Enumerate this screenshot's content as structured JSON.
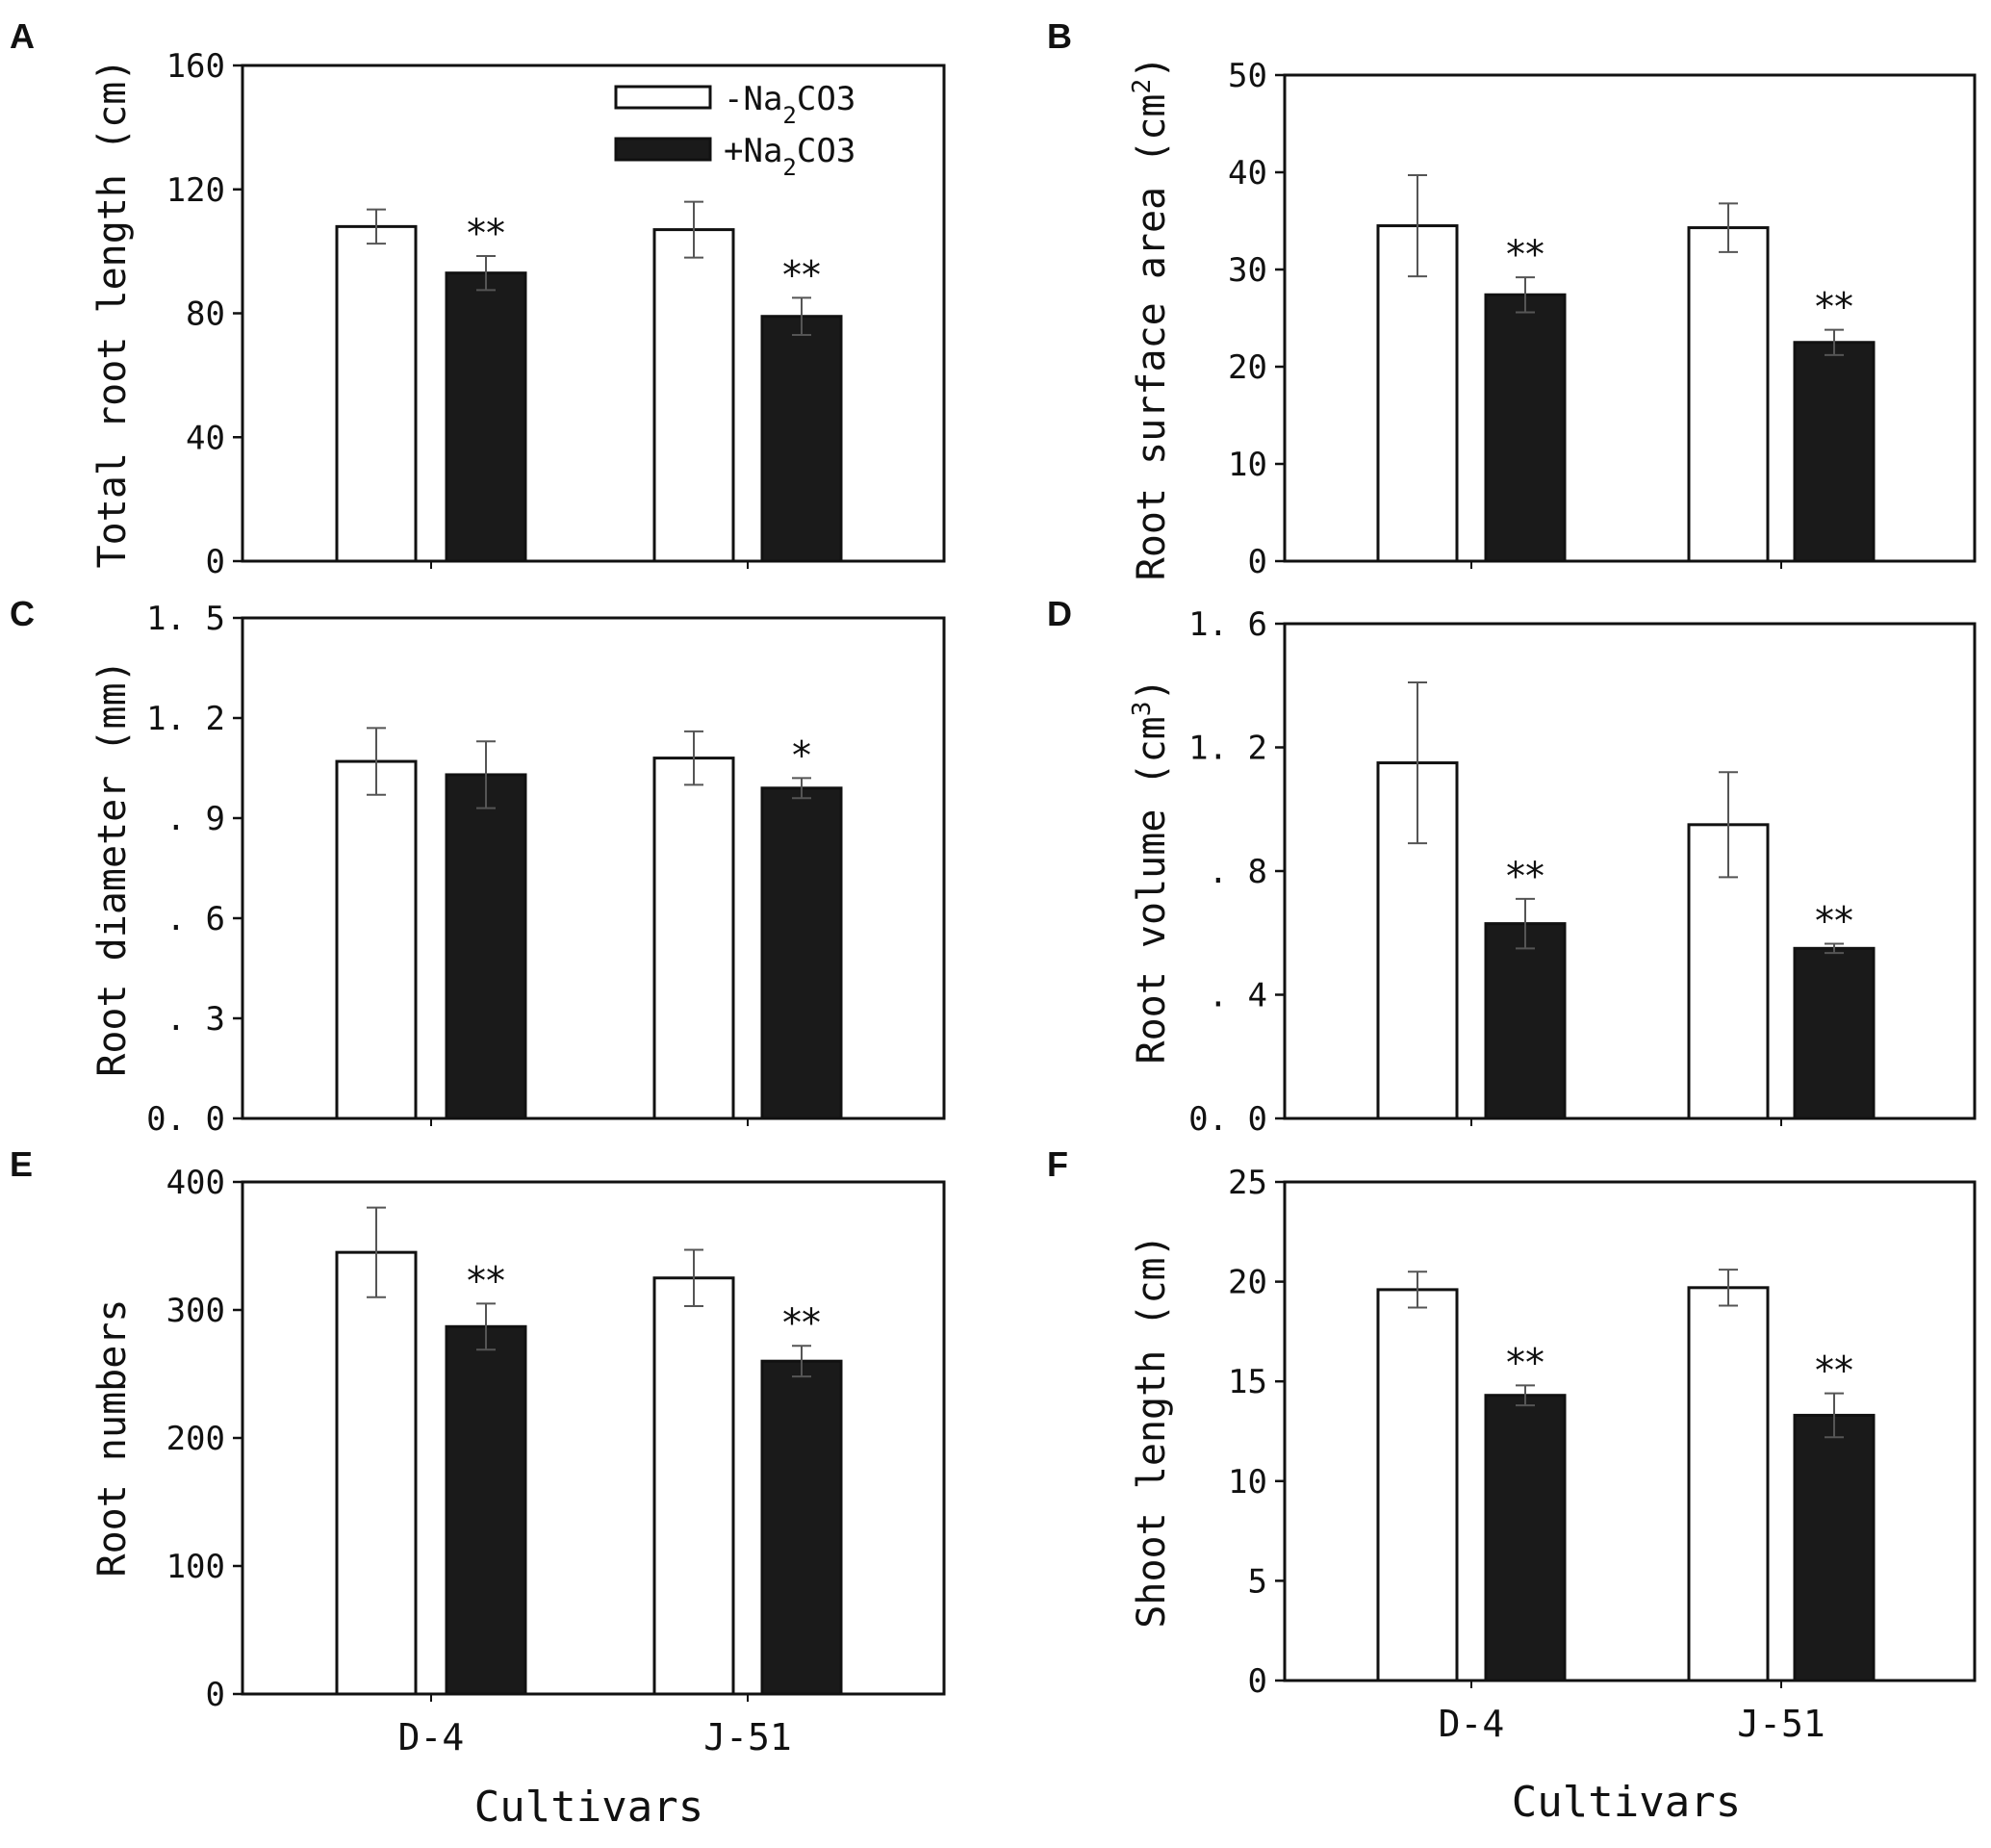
{
  "figure": {
    "legend": {
      "control": {
        "prefix": "-Na",
        "sub": "2",
        "suffix": "CO3"
      },
      "treatment": {
        "prefix": "+Na",
        "sub": "2",
        "suffix": "CO3"
      }
    },
    "xlabel": "Cultivars",
    "colors": {
      "control_fill": "#ffffff",
      "treatment_fill": "#1a1a1a",
      "stroke": "#111111",
      "errorbar": "#555555"
    }
  },
  "chart_data": [
    {
      "panel": "A",
      "type": "bar",
      "ylabel": "Total root length (cm)",
      "ylim": [
        0,
        160
      ],
      "yticks": [
        0,
        40,
        80,
        120,
        160
      ],
      "ytick_labels": [
        "0",
        "40",
        "80",
        "120",
        "160"
      ],
      "categories": [
        "D-4",
        "J-51"
      ],
      "series": [
        {
          "name": "-Na2CO3",
          "values": [
            108,
            107
          ],
          "errors": [
            5.5,
            9
          ]
        },
        {
          "name": "+Na2CO3",
          "values": [
            93,
            79
          ],
          "errors": [
            5.5,
            6
          ]
        }
      ],
      "significance": [
        [
          "",
          ""
        ],
        [
          "**",
          "**"
        ]
      ],
      "show_legend": true,
      "show_x_labels": false
    },
    {
      "panel": "B",
      "type": "bar",
      "ylabel": "Root surface area (cm2)",
      "ylabel_parts": {
        "text": "Root surface area (cm",
        "sup": "2",
        "end": ")"
      },
      "ylim": [
        0,
        50
      ],
      "yticks": [
        0,
        10,
        20,
        30,
        40,
        50
      ],
      "ytick_labels": [
        "0",
        "10",
        "20",
        "30",
        "40",
        "50"
      ],
      "categories": [
        "D-4",
        "J-51"
      ],
      "series": [
        {
          "name": "-Na2CO3",
          "values": [
            34.5,
            34.3
          ],
          "errors": [
            5.2,
            2.5
          ]
        },
        {
          "name": "+Na2CO3",
          "values": [
            27.4,
            22.5
          ],
          "errors": [
            1.8,
            1.3
          ]
        }
      ],
      "significance": [
        [
          "",
          ""
        ],
        [
          "**",
          "**"
        ]
      ],
      "show_legend": false,
      "show_x_labels": false
    },
    {
      "panel": "C",
      "type": "bar",
      "ylabel": "Root diameter (mm)",
      "ylim": [
        0,
        1.5
      ],
      "yticks": [
        0,
        0.3,
        0.6,
        0.9,
        1.2,
        1.5
      ],
      "ytick_labels": [
        "0. 0",
        ". 3",
        ". 6",
        ". 9",
        "1. 2",
        "1. 5"
      ],
      "categories": [
        "D-4",
        "J-51"
      ],
      "series": [
        {
          "name": "-Na2CO3",
          "values": [
            1.07,
            1.08
          ],
          "errors": [
            0.1,
            0.08
          ]
        },
        {
          "name": "+Na2CO3",
          "values": [
            1.03,
            0.99
          ],
          "errors": [
            0.1,
            0.03
          ]
        }
      ],
      "significance": [
        [
          "",
          ""
        ],
        [
          "",
          "*"
        ]
      ],
      "show_legend": false,
      "show_x_labels": false
    },
    {
      "panel": "D",
      "type": "bar",
      "ylabel": "Root volume (cm3)",
      "ylabel_parts": {
        "text": "Root volume (cm",
        "sup": "3",
        "end": ")"
      },
      "ylim": [
        0,
        1.6
      ],
      "yticks": [
        0,
        0.4,
        0.8,
        1.2,
        1.6
      ],
      "ytick_labels": [
        "0. 0",
        ". 4",
        ". 8",
        "1. 2",
        "1. 6"
      ],
      "categories": [
        "D-4",
        "J-51"
      ],
      "series": [
        {
          "name": "-Na2CO3",
          "values": [
            1.15,
            0.95
          ],
          "errors": [
            0.26,
            0.17
          ]
        },
        {
          "name": "+Na2CO3",
          "values": [
            0.63,
            0.55
          ],
          "errors": [
            0.08,
            0.015
          ]
        }
      ],
      "significance": [
        [
          "",
          ""
        ],
        [
          "**",
          "**"
        ]
      ],
      "show_legend": false,
      "show_x_labels": false
    },
    {
      "panel": "E",
      "type": "bar",
      "ylabel": "Root numbers",
      "ylim": [
        0,
        400
      ],
      "yticks": [
        0,
        100,
        200,
        300,
        400
      ],
      "ytick_labels": [
        "0",
        "100",
        "200",
        "300",
        "400"
      ],
      "categories": [
        "D-4",
        "J-51"
      ],
      "series": [
        {
          "name": "-Na2CO3",
          "values": [
            345,
            325
          ],
          "errors": [
            35,
            22
          ]
        },
        {
          "name": "+Na2CO3",
          "values": [
            287,
            260
          ],
          "errors": [
            18,
            12
          ]
        }
      ],
      "significance": [
        [
          "",
          ""
        ],
        [
          "**",
          "**"
        ]
      ],
      "show_legend": false,
      "show_x_labels": true
    },
    {
      "panel": "F",
      "type": "bar",
      "ylabel": "Shoot length (cm)",
      "ylim": [
        0,
        25
      ],
      "yticks": [
        0,
        5,
        10,
        15,
        20,
        25
      ],
      "ytick_labels": [
        "0",
        "5",
        "10",
        "15",
        "20",
        "25"
      ],
      "categories": [
        "D-4",
        "J-51"
      ],
      "series": [
        {
          "name": "-Na2CO3",
          "values": [
            19.6,
            19.7
          ],
          "errors": [
            0.9,
            0.9
          ]
        },
        {
          "name": "+Na2CO3",
          "values": [
            14.3,
            13.3
          ],
          "errors": [
            0.5,
            1.1
          ]
        }
      ],
      "significance": [
        [
          "",
          ""
        ],
        [
          "**",
          "**"
        ]
      ],
      "show_legend": false,
      "show_x_labels": true
    }
  ]
}
